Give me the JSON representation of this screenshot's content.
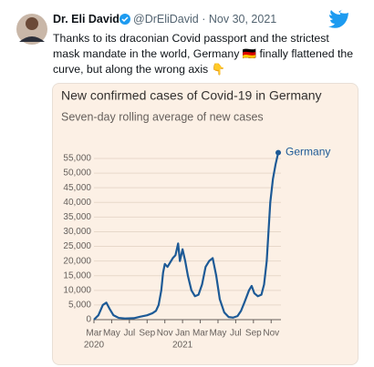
{
  "tweet": {
    "name": "Dr. Eli David",
    "handle": "@DrEliDavid",
    "separator": "·",
    "date": "Nov 30, 2021",
    "text": "Thanks to its draconian Covid passport and the strictest mask mandate in the world, Germany 🇩🇪 finally flattened the curve, but along the wrong axis 👇"
  },
  "chart_data": {
    "type": "line",
    "title": "New confirmed cases of Covid-19 in Germany",
    "subtitle": "Seven-day rolling average of new cases",
    "x": [
      2.0,
      2.5,
      3.0,
      3.4,
      3.8,
      4.2,
      4.8,
      5.5,
      6.5,
      7.2,
      8.0,
      8.6,
      9.0,
      9.3,
      9.6,
      9.8,
      10.0,
      10.3,
      10.6,
      10.9,
      11.2,
      11.5,
      11.7,
      12.0,
      12.3,
      12.6,
      13.0,
      13.4,
      13.8,
      14.2,
      14.6,
      15.0,
      15.4,
      15.8,
      16.2,
      16.7,
      17.2,
      17.7,
      18.2,
      18.6,
      19.0,
      19.5,
      19.8,
      20.1,
      20.5,
      20.9,
      21.2,
      21.5,
      21.7,
      21.9,
      22.2,
      22.5,
      22.8
    ],
    "series": [
      {
        "name": "Germany",
        "color": "#1d5a96",
        "values": [
          0,
          1500,
          5000,
          5800,
          3500,
          1500,
          600,
          400,
          500,
          1000,
          1500,
          2200,
          3000,
          5000,
          10000,
          16000,
          19000,
          18000,
          19500,
          21000,
          22000,
          26000,
          20000,
          24000,
          20000,
          15000,
          10000,
          8000,
          8500,
          12000,
          18000,
          20000,
          21000,
          15000,
          7000,
          2500,
          900,
          700,
          1200,
          3000,
          6000,
          10000,
          11500,
          9000,
          8000,
          8500,
          12000,
          20000,
          30000,
          40000,
          48000,
          53000,
          57000
        ]
      }
    ],
    "xlim": [
      2,
      22.9
    ],
    "xticks": [
      {
        "value": 2,
        "label": "Mar"
      },
      {
        "value": 4,
        "label": "May"
      },
      {
        "value": 6,
        "label": "Jul"
      },
      {
        "value": 8,
        "label": "Sep"
      },
      {
        "value": 10,
        "label": "Nov"
      },
      {
        "value": 12,
        "label": "Jan"
      },
      {
        "value": 14,
        "label": "Mar"
      },
      {
        "value": 16,
        "label": "May"
      },
      {
        "value": 18,
        "label": "Jul"
      },
      {
        "value": 20,
        "label": "Sep"
      },
      {
        "value": 22,
        "label": "Nov"
      }
    ],
    "x_year_labels": [
      {
        "value": 2,
        "label": "2020"
      },
      {
        "value": 12,
        "label": "2021"
      }
    ],
    "ylim": [
      0,
      57500
    ],
    "yticks": [
      0,
      {
        "value": 5000,
        "label": "5,000"
      },
      {
        "value": 10000,
        "label": "10,000"
      },
      {
        "value": 15000,
        "label": "15,000"
      },
      {
        "value": 20000,
        "label": "20,000"
      },
      {
        "value": 25000,
        "label": "25,000"
      },
      {
        "value": 30000,
        "label": "30,000"
      },
      {
        "value": 35000,
        "label": "35,000"
      },
      {
        "value": 40000,
        "label": "40,000"
      },
      {
        "value": 45000,
        "label": "45,000"
      },
      {
        "value": 50000,
        "label": "50,000"
      },
      {
        "value": 55000,
        "label": "55,000"
      }
    ],
    "grid": true
  }
}
